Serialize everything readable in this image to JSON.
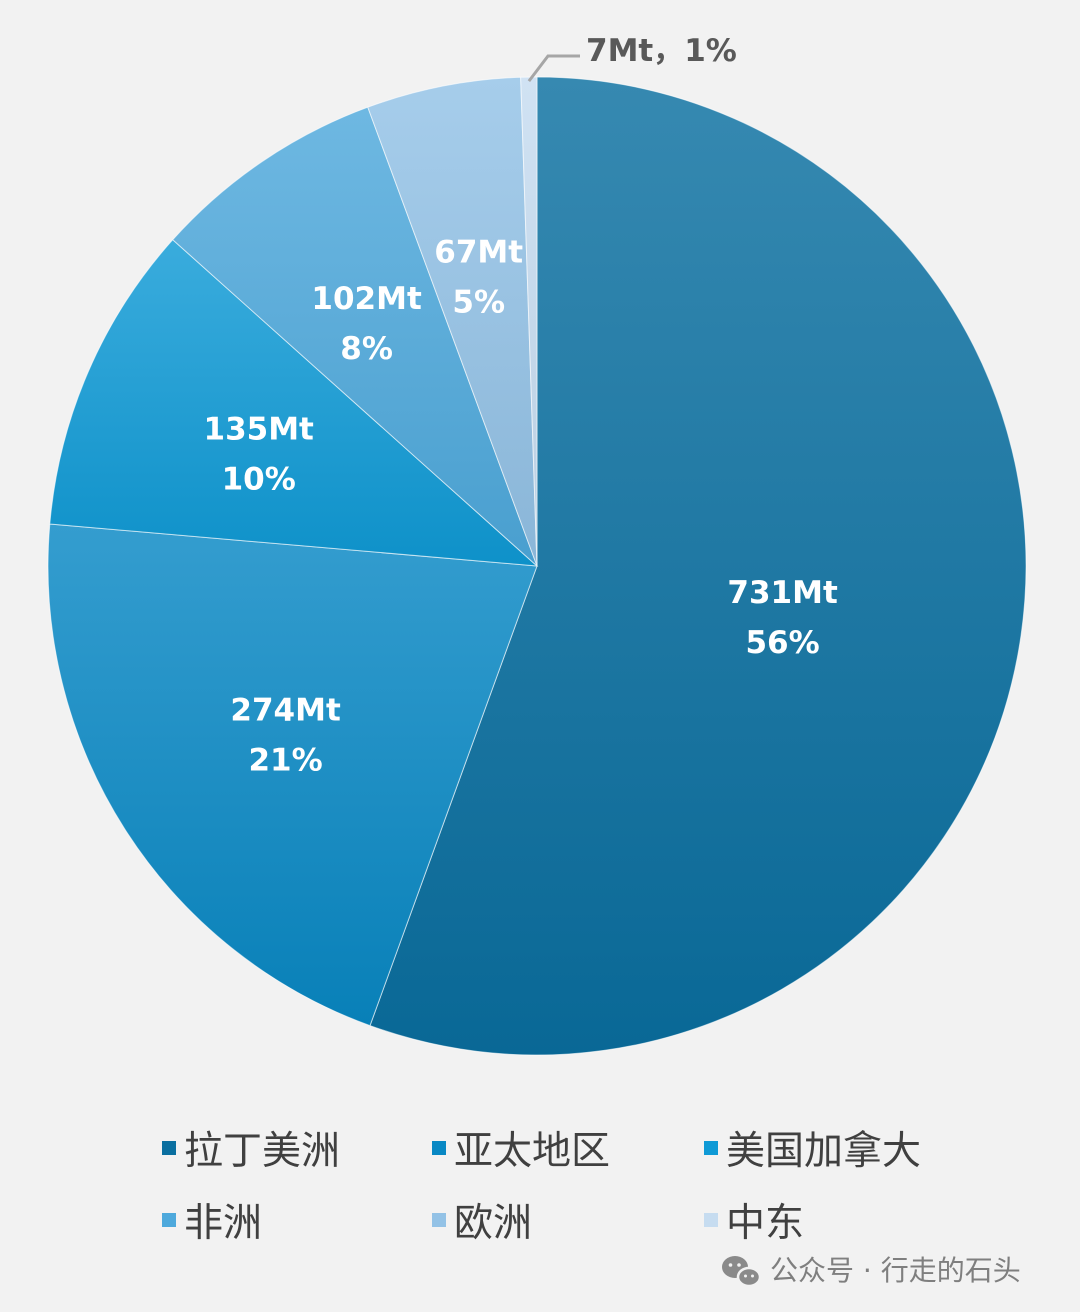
{
  "chart_data": {
    "type": "pie",
    "unit": "Mt",
    "categories": [
      "拉丁美洲",
      "亚太地区",
      "美国加拿大",
      "非洲",
      "欧洲",
      "中东"
    ],
    "values": [
      731,
      274,
      135,
      102,
      67,
      7
    ],
    "percent_labels": [
      "56%",
      "21%",
      "10%",
      "8%",
      "5%",
      "1%"
    ],
    "value_labels": [
      "731Mt",
      "274Mt",
      "135Mt",
      "102Mt",
      "67Mt",
      "7Mt"
    ],
    "outer_label": "7Mt，1%",
    "colors": [
      "#0a6fa0",
      "#0888c4",
      "#0f9ad6",
      "#4ea9dc",
      "#93c2e6",
      "#c6dcf0"
    ],
    "start": "12 o'clock, clockwise",
    "legend": {
      "position": "bottom",
      "columns": 3
    }
  },
  "watermark": {
    "text": "公众号 · 行走的石头",
    "icon": "wechat-icon"
  }
}
